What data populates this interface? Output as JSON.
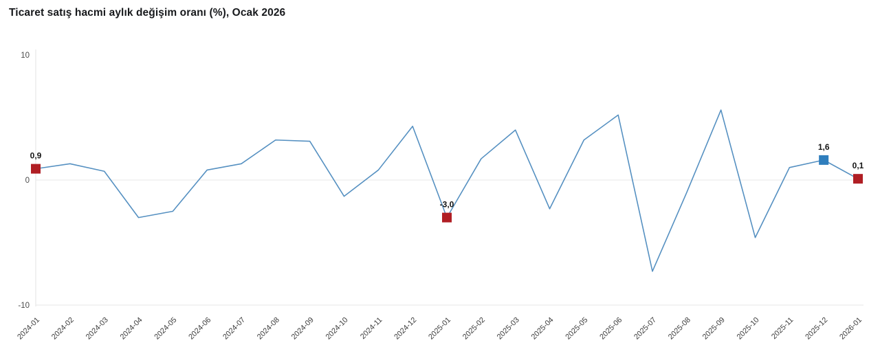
{
  "colors": {
    "line": "#5590c1",
    "marker_red": "#b01e24",
    "marker_blue": "#2f7ebd",
    "grid": "#e7e7e7",
    "axis_line": "#e3e3e3",
    "tick_text": "#4a4a4a",
    "xlabel_text": "#3d3d3d",
    "data_label_text": "#141414",
    "background": "#ffffff"
  },
  "chart_data": {
    "type": "line",
    "title": "Ticaret satış hacmi aylık değişim oranı (%), Ocak 2026",
    "xlabel": "",
    "ylabel": "",
    "ylim": [
      -10,
      10
    ],
    "yticks": [
      10,
      0,
      -10
    ],
    "grid": "horizontal lines at 0 and -10 only",
    "legend": "none",
    "categories": [
      "2024-01",
      "2024-02",
      "2024-03",
      "2024-04",
      "2024-05",
      "2024-06",
      "2024-07",
      "2024-08",
      "2024-09",
      "2024-10",
      "2024-11",
      "2024-12",
      "2025-01",
      "2025-02",
      "2025-03",
      "2025-04",
      "2025-05",
      "2025-06",
      "2025-07",
      "2025-08",
      "2025-09",
      "2025-10",
      "2025-11",
      "2025-12",
      "2026-01"
    ],
    "values": [
      0.9,
      1.3,
      0.7,
      -3.0,
      -2.5,
      0.8,
      1.3,
      3.2,
      3.1,
      -1.3,
      0.8,
      4.3,
      -3.0,
      1.7,
      4.0,
      -2.3,
      3.2,
      5.2,
      -7.3,
      -1.0,
      5.6,
      -4.6,
      1.0,
      1.6,
      0.1
    ],
    "annotations": [
      {
        "category": "2024-01",
        "label": "0,9",
        "marker": "red"
      },
      {
        "category": "2025-01",
        "label": "-3,0",
        "marker": "red"
      },
      {
        "category": "2025-12",
        "label": "1,6",
        "marker": "blue"
      },
      {
        "category": "2026-01",
        "label": "0,1",
        "marker": "red"
      }
    ]
  }
}
